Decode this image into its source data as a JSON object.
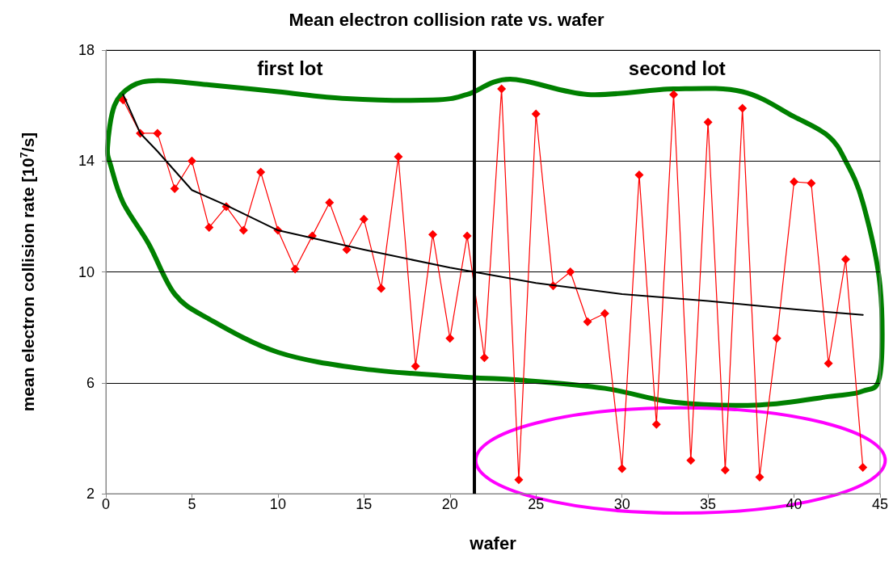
{
  "chart_data": {
    "type": "line",
    "title": "Mean electron collision rate vs. wafer",
    "xlabel": "wafer",
    "ylabel": "mean electron collision rate [10$^{7}$/s]",
    "x": [
      1,
      2,
      3,
      4,
      5,
      6,
      7,
      8,
      9,
      10,
      11,
      12,
      13,
      14,
      15,
      16,
      17,
      18,
      19,
      20,
      21,
      22,
      23,
      24,
      25,
      26,
      27,
      28,
      29,
      30,
      31,
      32,
      33,
      34,
      35,
      36,
      37,
      38,
      39,
      40,
      41,
      42,
      43,
      44
    ],
    "series": [
      {
        "type": "line",
        "color": "#ff0000",
        "marker": "diamond",
        "values": [
          16.2,
          15.0,
          15.0,
          13.0,
          14.0,
          11.6,
          12.35,
          11.5,
          13.6,
          11.5,
          10.1,
          11.3,
          12.5,
          10.8,
          11.9,
          9.4,
          14.15,
          6.6,
          11.35,
          7.6,
          11.3,
          6.9,
          16.6,
          2.5,
          15.7,
          9.5,
          10.0,
          8.2,
          8.5,
          2.9,
          13.5,
          4.5,
          16.4,
          3.2,
          15.4,
          2.85,
          15.9,
          2.6,
          7.6,
          13.25,
          13.2,
          6.7,
          10.45,
          2.95
        ]
      },
      {
        "type": "line",
        "color": "#000000",
        "marker": "none",
        "x": [
          1,
          2,
          3,
          5,
          7,
          10,
          15,
          20,
          25,
          30,
          35,
          40,
          44
        ],
        "values": [
          16.4,
          15.0,
          14.35,
          12.95,
          12.4,
          11.5,
          10.8,
          10.15,
          9.6,
          9.2,
          8.95,
          8.65,
          8.45
        ]
      }
    ],
    "annotations": [
      "first lot",
      "second lot"
    ],
    "ref_lines": [
      {
        "axis": "x",
        "value": 21.4,
        "color": "#000000"
      }
    ],
    "xlim": [
      0,
      45
    ],
    "xticks": [
      0,
      5,
      10,
      15,
      20,
      25,
      30,
      35,
      40,
      45
    ],
    "ylim": [
      2,
      18
    ],
    "yticks": [
      2,
      6,
      10,
      14,
      18
    ],
    "grid": "y"
  }
}
